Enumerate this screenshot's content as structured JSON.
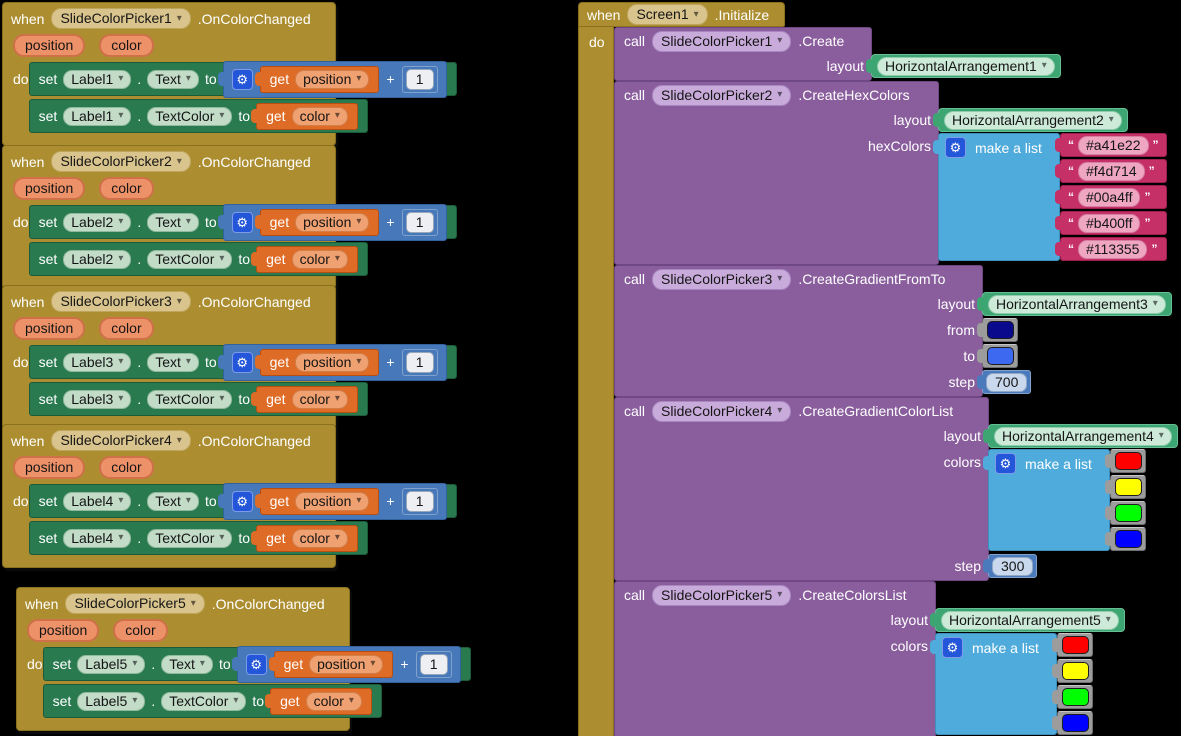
{
  "labels": {
    "when": "when",
    "do": "do",
    "set": "set",
    "to": "to",
    "get": "get",
    "call": "call",
    "plus": "+",
    "dot": ".",
    "make_a_list": "make a list",
    "quote_open": "“",
    "quote_close": "”"
  },
  "icons": {
    "gear": "⚙",
    "dropdown": "▾"
  },
  "left_events": [
    {
      "picker": "SlideColorPicker1",
      "event": ".OnColorChanged",
      "param1": "position",
      "param2": "color",
      "label": "Label1",
      "prop1": "Text",
      "prop2": "TextColor",
      "get1": "position",
      "num": "1",
      "get2": "color"
    },
    {
      "picker": "SlideColorPicker2",
      "event": ".OnColorChanged",
      "param1": "position",
      "param2": "color",
      "label": "Label2",
      "prop1": "Text",
      "prop2": "TextColor",
      "get1": "position",
      "num": "1",
      "get2": "color"
    },
    {
      "picker": "SlideColorPicker3",
      "event": ".OnColorChanged",
      "param1": "position",
      "param2": "color",
      "label": "Label3",
      "prop1": "Text",
      "prop2": "TextColor",
      "get1": "position",
      "num": "1",
      "get2": "color"
    },
    {
      "picker": "SlideColorPicker4",
      "event": ".OnColorChanged",
      "param1": "position",
      "param2": "color",
      "label": "Label4",
      "prop1": "Text",
      "prop2": "TextColor",
      "get1": "position",
      "num": "1",
      "get2": "color"
    },
    {
      "picker": "SlideColorPicker5",
      "event": ".OnColorChanged",
      "param1": "position",
      "param2": "color",
      "label": "Label5",
      "prop1": "Text",
      "prop2": "TextColor",
      "get1": "position",
      "num": "1",
      "get2": "color"
    }
  ],
  "screen": {
    "component": "Screen1",
    "event": ".Initialize",
    "call1": {
      "component": "SlideColorPicker1",
      "method": ".Create",
      "arg1_label": "layout",
      "arg1_value": "HorizontalArrangement1"
    },
    "call2": {
      "component": "SlideColorPicker2",
      "method": ".CreateHexColors",
      "arg1_label": "layout",
      "arg1_value": "HorizontalArrangement2",
      "arg2_label": "hexColors",
      "items": [
        "#a41e22",
        "#f4d714",
        "#00a4ff",
        "#b400ff",
        "#113355"
      ]
    },
    "call3": {
      "component": "SlideColorPicker3",
      "method": ".CreateGradientFromTo",
      "arg1_label": "layout",
      "arg1_value": "HorizontalArrangement3",
      "arg2_label": "from",
      "arg2_color": "#0A0A8C",
      "arg3_label": "to",
      "arg3_color": "#3D68F0",
      "arg4_label": "step",
      "arg4_value": "700"
    },
    "call4": {
      "component": "SlideColorPicker4",
      "method": ".CreateGradientColorList",
      "arg1_label": "layout",
      "arg1_value": "HorizontalArrangement4",
      "arg2_label": "colors",
      "swatches": [
        "#FF0000",
        "#FFFF00",
        "#00FF00",
        "#0000FF"
      ],
      "arg3_label": "step",
      "arg3_value": "300"
    },
    "call5": {
      "component": "SlideColorPicker5",
      "method": ".CreateColorsList",
      "arg1_label": "layout",
      "arg1_value": "HorizontalArrangement5",
      "arg2_label": "colors",
      "swatches": [
        "#FF0000",
        "#FFFF00",
        "#00FF00",
        "#0000FF"
      ]
    }
  },
  "theme": {
    "canvas_bg": "#000000",
    "event_gold": "#AC8E31",
    "method_purple": "#8A5E9D",
    "setter_green": "#2A7A50",
    "getter_orange": "#DF6C26",
    "math_blue": "#4778BA",
    "list_blue": "#4FABDB",
    "text_magenta": "#C53066",
    "component_green": "#3CA571",
    "color_block_gray": "#9C9C9C"
  }
}
